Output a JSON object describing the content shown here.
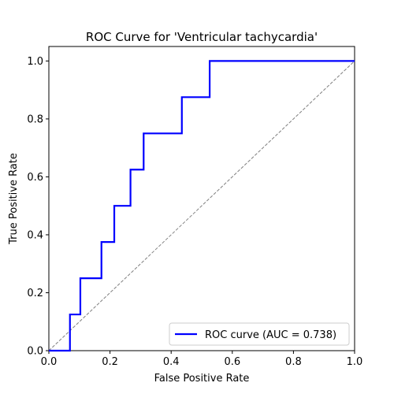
{
  "chart_data": {
    "type": "line",
    "title": "ROC Curve for 'Ventricular tachycardia'",
    "xlabel": "False Positive Rate",
    "ylabel": "True Positive Rate",
    "xlim": [
      0.0,
      1.0
    ],
    "ylim": [
      0.0,
      1.05
    ],
    "xticks": [
      0.0,
      0.2,
      0.4,
      0.6,
      0.8,
      1.0
    ],
    "yticks": [
      0.0,
      0.2,
      0.4,
      0.6,
      0.8,
      1.0
    ],
    "xtick_labels": [
      "0.0",
      "0.2",
      "0.4",
      "0.6",
      "0.8",
      "1.0"
    ],
    "ytick_labels": [
      "0.0",
      "0.2",
      "0.4",
      "0.6",
      "0.8",
      "1.0"
    ],
    "grid": false,
    "legend_position": "bottom-right",
    "series": [
      {
        "name": "ROC curve (AUC = 0.738)",
        "color": "#0000ff",
        "style": "solid",
        "x": [
          0.0,
          0.069,
          0.069,
          0.103,
          0.103,
          0.172,
          0.172,
          0.214,
          0.214,
          0.267,
          0.267,
          0.31,
          0.31,
          0.435,
          0.435,
          0.526,
          0.526,
          1.0
        ],
        "y": [
          0.0,
          0.0,
          0.125,
          0.125,
          0.25,
          0.25,
          0.375,
          0.375,
          0.5,
          0.5,
          0.625,
          0.625,
          0.75,
          0.75,
          0.875,
          0.875,
          1.0,
          1.0
        ]
      },
      {
        "color": "#808080",
        "style": "dashed",
        "x": [
          0.0,
          1.0
        ],
        "y": [
          0.0,
          1.0
        ]
      }
    ]
  }
}
